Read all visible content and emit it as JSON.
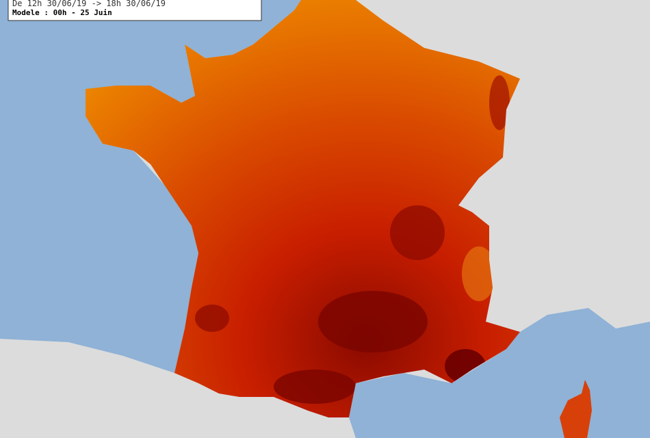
{
  "legend": {
    "line1": "De 12h 30/06/19 -> 18h 30/06/19",
    "line2": "Modele : 00h - 25 Juin"
  }
}
